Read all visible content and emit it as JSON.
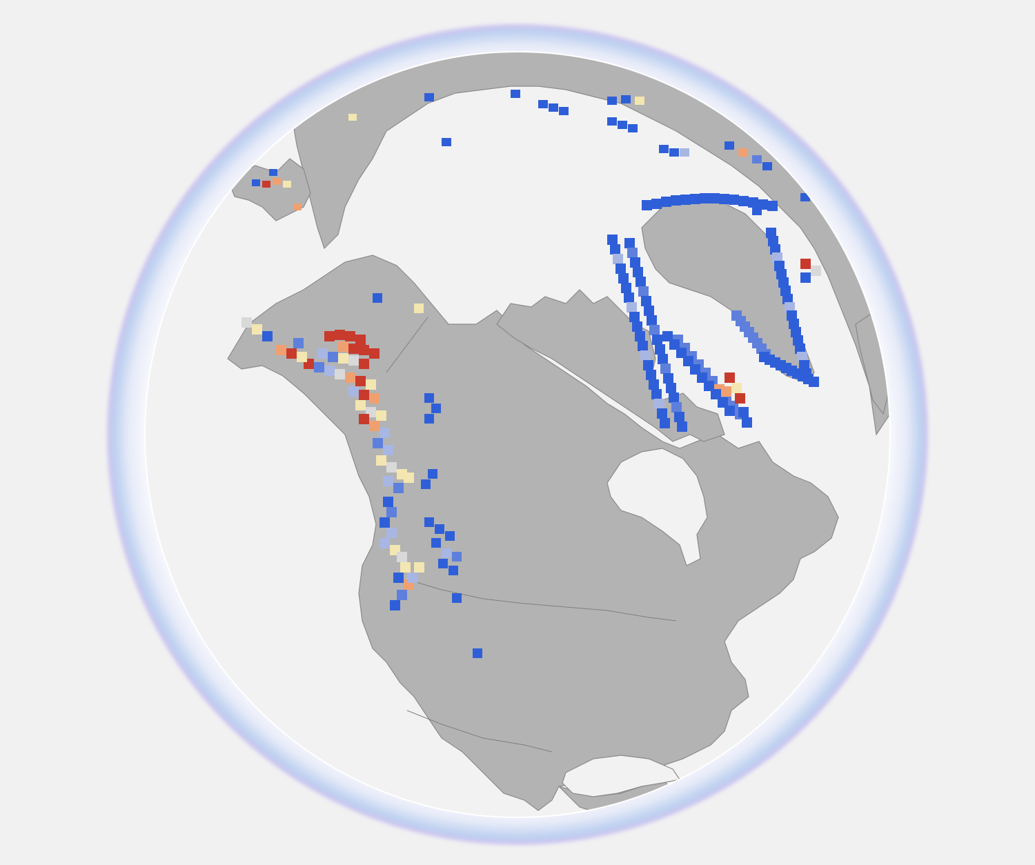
{
  "map": {
    "projection": "orthographic",
    "center_region": "North America",
    "colors": {
      "page_background": "#f1f1f1",
      "ocean": "#f2f2f2",
      "land": "#b3b3b3",
      "coastline": "#8a8a8a",
      "border": "#7f7f7f",
      "halo_outer": "#c9c4f0",
      "halo_inner": "#bcd6f0"
    },
    "layers": [
      {
        "name": "land-masses",
        "kind": "polygon"
      },
      {
        "name": "country-borders",
        "kind": "line"
      },
      {
        "name": "glacier-change-grid",
        "kind": "raster-cells"
      }
    ],
    "cell_palette": {
      "strong_loss": "#2f5fd8",
      "loss": "#5e80dc",
      "slight_loss": "#a8b6e4",
      "neutral": "#d9d9d9",
      "slight_gain": "#f3e6b0",
      "gain": "#f0a070",
      "strong_gain": "#c83a2c"
    }
  }
}
